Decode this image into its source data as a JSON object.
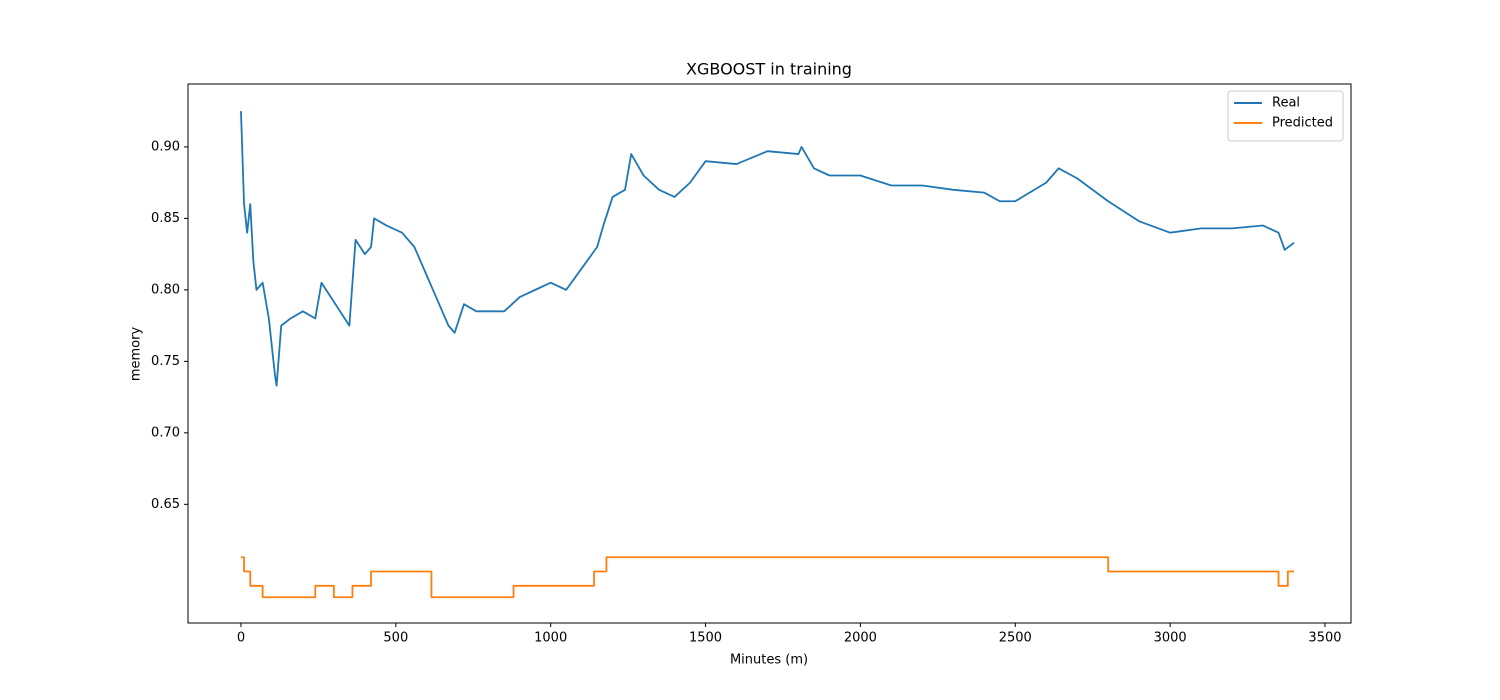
{
  "chart_data": {
    "type": "line",
    "title": "XGBOOST in training",
    "xlabel": "Minutes (m)",
    "ylabel": "memory",
    "xlim": [
      -171,
      3584
    ],
    "ylim": [
      0.567,
      0.944
    ],
    "xticks": [
      0,
      500,
      1000,
      1500,
      2000,
      2500,
      3000,
      3500
    ],
    "yticks": [
      0.65,
      {
        "value": 0.7,
        "label": "0.70"
      },
      0.75,
      {
        "value": 0.8,
        "label": "0.80"
      },
      0.85,
      {
        "value": 0.9,
        "label": "0.90"
      }
    ],
    "legend": "upper right",
    "series": [
      {
        "name": "Real",
        "color": "#1f77b4",
        "x": [
          0,
          10,
          20,
          30,
          40,
          50,
          70,
          90,
          110,
          115,
          130,
          160,
          200,
          240,
          260,
          290,
          320,
          350,
          370,
          400,
          420,
          430,
          470,
          520,
          560,
          600,
          640,
          670,
          690,
          720,
          760,
          800,
          850,
          900,
          950,
          1000,
          1050,
          1100,
          1150,
          1170,
          1200,
          1240,
          1260,
          1300,
          1350,
          1400,
          1450,
          1500,
          1600,
          1700,
          1800,
          1810,
          1850,
          1900,
          2000,
          2100,
          2200,
          2300,
          2400,
          2450,
          2500,
          2600,
          2640,
          2700,
          2800,
          2900,
          3000,
          3100,
          3200,
          3300,
          3350,
          3370,
          3400
        ],
        "values": [
          0.925,
          0.86,
          0.84,
          0.86,
          0.82,
          0.8,
          0.805,
          0.78,
          0.74,
          0.733,
          0.775,
          0.78,
          0.785,
          0.78,
          0.805,
          0.795,
          0.785,
          0.775,
          0.835,
          0.825,
          0.83,
          0.85,
          0.845,
          0.84,
          0.83,
          0.81,
          0.79,
          0.775,
          0.77,
          0.79,
          0.785,
          0.785,
          0.785,
          0.795,
          0.8,
          0.805,
          0.8,
          0.815,
          0.83,
          0.845,
          0.865,
          0.87,
          0.895,
          0.88,
          0.87,
          0.865,
          0.875,
          0.89,
          0.888,
          0.897,
          0.895,
          0.9,
          0.885,
          0.88,
          0.88,
          0.873,
          0.873,
          0.87,
          0.868,
          0.862,
          0.862,
          0.875,
          0.885,
          0.878,
          0.862,
          0.848,
          0.84,
          0.843,
          0.843,
          0.845,
          0.84,
          0.828,
          0.833
        ]
      },
      {
        "name": "Predicted",
        "color": "#ff7f0e",
        "x": [
          0,
          10,
          10,
          30,
          30,
          70,
          70,
          240,
          240,
          300,
          300,
          360,
          360,
          420,
          420,
          615,
          615,
          880,
          880,
          1140,
          1140,
          1180,
          1180,
          2800,
          2800,
          3350,
          3350,
          3380,
          3380,
          3400
        ],
        "values": [
          0.613,
          0.613,
          0.603,
          0.603,
          0.593,
          0.593,
          0.585,
          0.585,
          0.593,
          0.593,
          0.585,
          0.585,
          0.593,
          0.593,
          0.603,
          0.603,
          0.585,
          0.585,
          0.593,
          0.593,
          0.603,
          0.603,
          0.613,
          0.613,
          0.603,
          0.603,
          0.593,
          0.593,
          0.603,
          0.603
        ]
      }
    ]
  }
}
